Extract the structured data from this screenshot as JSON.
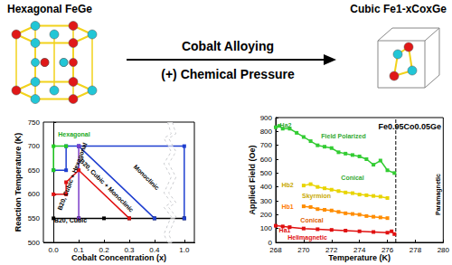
{
  "left_structure_label": "Hexagonal FeGe",
  "right_structure_label": "Cubic Fe1-xCoxGe",
  "arrow_text_top": "Cobalt Alloying",
  "arrow_text_bottom": "(+) Chemical Pressure",
  "chart_data": [
    {
      "type": "line",
      "xlabel": "Cobalt Concentration (x)",
      "ylabel": "Reaction Temperature (K)",
      "xlim": [
        -0.04,
        1.04
      ],
      "x_break": [
        0.45,
        0.95
      ],
      "xticks": [
        {
          "value": 0,
          "label": "0.0"
        },
        0.1,
        0.2,
        0.3,
        0.4,
        {
          "value": 1,
          "label": "1.0"
        }
      ],
      "ylim": [
        500,
        750
      ],
      "yticks": [
        500,
        550,
        600,
        650,
        700,
        750
      ],
      "grid": false,
      "annotations": [
        "Hexagonal",
        "B20, Cubic + Hexagonal",
        "B20, Cubic + Monoclinic",
        "Monoclinic",
        "B20, Cubic"
      ],
      "series": [
        {
          "color": "#000000",
          "marker": "square",
          "line_style": "solid",
          "x": [
            0,
            0.1,
            0.2,
            0.3,
            0.4,
            1.0
          ],
          "values": [
            550,
            550,
            550,
            550,
            550,
            550
          ]
        },
        {
          "color": "#e01010",
          "marker": "square",
          "line_style": "solid",
          "x": [
            0,
            0.05,
            0.05,
            0.1,
            0.3
          ],
          "values": [
            600,
            600,
            625,
            650,
            550
          ]
        },
        {
          "color": "#1f3fd0",
          "marker": "square",
          "line_style": "solid",
          "x": [
            0,
            0.05,
            0.05,
            0.1,
            0.4
          ],
          "values": [
            650,
            650,
            700,
            700,
            550
          ]
        },
        {
          "color": "#1f3fd0",
          "marker": "square",
          "line_style": "solid",
          "x": [
            0.1,
            1.0,
            1.0
          ],
          "values": [
            700,
            700,
            550
          ]
        },
        {
          "color": "#22cc22",
          "marker": "square",
          "line_style": "solid",
          "x": [
            0,
            0,
            0.05
          ],
          "values": [
            650,
            700,
            700
          ]
        },
        {
          "color": "#7a3cc8",
          "marker": "square",
          "line_style": "solid",
          "x": [
            0.1,
            0.1
          ],
          "values": [
            550,
            700
          ]
        }
      ]
    },
    {
      "type": "line",
      "title": "Fe0.95Co0.05Ge",
      "xlabel": "Temperature (K)",
      "ylabel": "Applied Field (Oe)",
      "xlim": [
        268,
        280
      ],
      "xticks": [
        268,
        270,
        272,
        274,
        276,
        278,
        280
      ],
      "ylim": [
        0,
        900
      ],
      "yticks": [
        0,
        100,
        200,
        300,
        400,
        500,
        600,
        700,
        800,
        900
      ],
      "grid": false,
      "annotations": [
        "Ha2",
        "Field Polarized",
        "Conical",
        "Hb2",
        "Skyrmion",
        "Hb1",
        "Conical",
        "Ha1",
        "Helimagnetic",
        "Paramagnetic"
      ],
      "series": [
        {
          "color": "#33cc33",
          "marker": "square",
          "line_style": "solid",
          "x": [
            268,
            268.25,
            268.5,
            269,
            269.5,
            270,
            270.5,
            271,
            271.5,
            272,
            272.5,
            273,
            273.5,
            274,
            274.5,
            275,
            275.5,
            276,
            276.5
          ],
          "values": [
            830,
            840,
            820,
            820,
            790,
            760,
            730,
            700,
            690,
            680,
            650,
            640,
            630,
            620,
            600,
            560,
            590,
            520,
            500
          ]
        },
        {
          "color": "#e8d400",
          "marker": "square",
          "line_style": "solid",
          "x": [
            270,
            270.5,
            271,
            271.5,
            272,
            272.5,
            273,
            273.5,
            274,
            274.5,
            275,
            275.5,
            276
          ],
          "values": [
            410,
            420,
            400,
            390,
            380,
            370,
            360,
            355,
            345,
            340,
            335,
            330,
            320
          ]
        },
        {
          "color": "#ff8c00",
          "marker": "square",
          "line_style": "solid",
          "x": [
            270,
            270.5,
            271,
            271.5,
            272,
            272.5,
            273,
            273.5,
            274,
            274.5,
            275,
            275.5,
            276
          ],
          "values": [
            260,
            255,
            240,
            235,
            230,
            220,
            210,
            205,
            200,
            190,
            185,
            180,
            175
          ]
        },
        {
          "color": "#e01010",
          "marker": "square",
          "line_style": "solid",
          "x": [
            268,
            268.5,
            269,
            270,
            271,
            272,
            273,
            274,
            275,
            276,
            276.3,
            276.5
          ],
          "values": [
            120,
            115,
            110,
            100,
            95,
            90,
            85,
            80,
            75,
            70,
            80,
            60
          ]
        },
        {
          "color": "#000000",
          "marker": "none",
          "line_style": "dashed",
          "x": [
            276.6,
            276.6
          ],
          "values": [
            0,
            900
          ]
        }
      ]
    }
  ]
}
